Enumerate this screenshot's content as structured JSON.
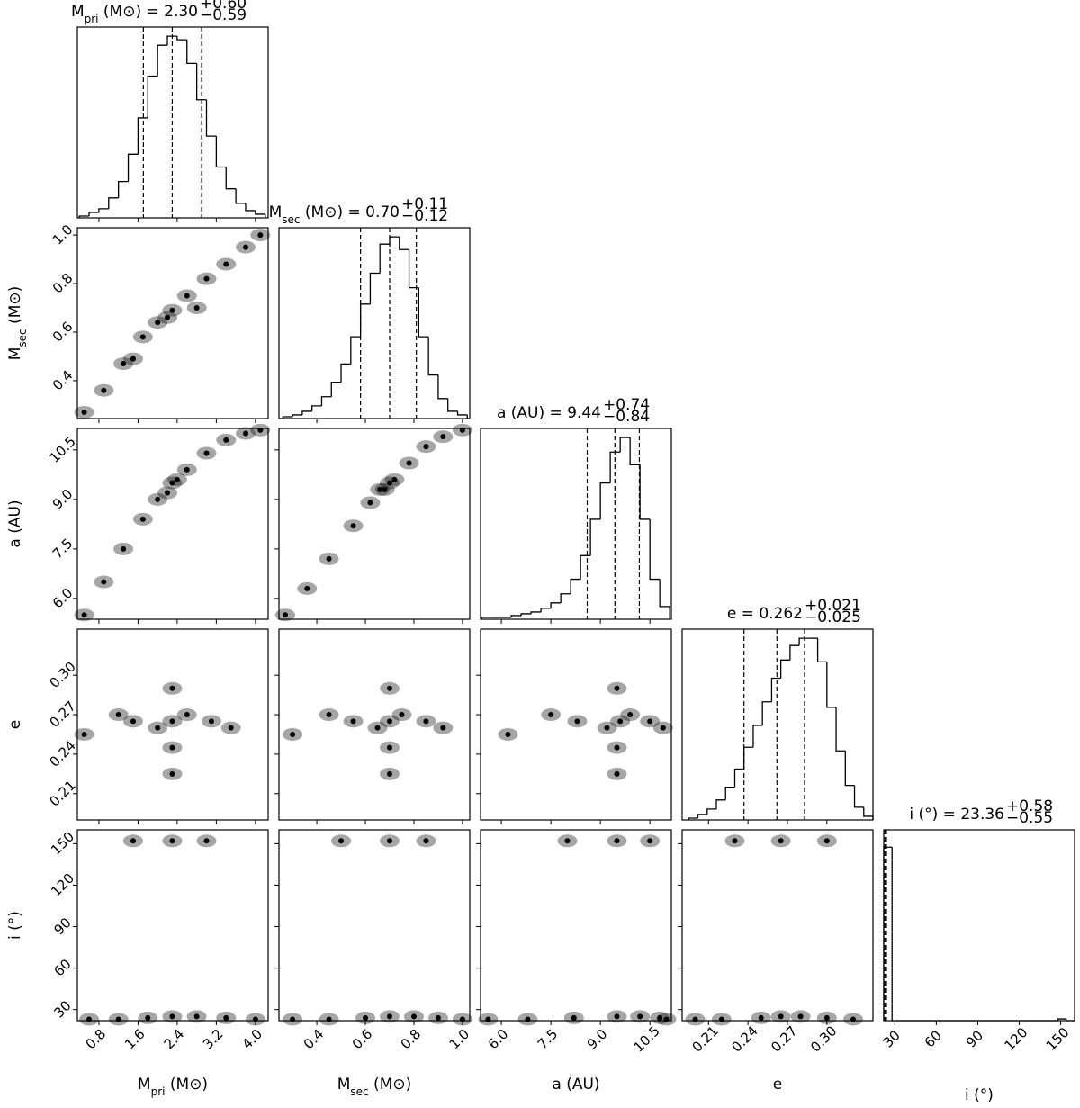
{
  "chart_data": {
    "type": "corner",
    "variables": [
      {
        "label": [
          {
            "text": "M"
          },
          {
            "text": "pri",
            "role": "sub"
          },
          {
            "text": " (M⊙)"
          }
        ],
        "title": {
          "parts": [
            {
              "text": "M"
            },
            {
              "text": "pri",
              "role": "sub"
            },
            {
              "text": " (M⊙) = 2.30"
            }
          ],
          "plus": "+0.60",
          "minus": "−0.59"
        },
        "lim": [
          0.36,
          4.26
        ],
        "ticks": [
          0.8,
          1.6,
          2.4,
          3.2,
          {
            "value": 4.0,
            "label": "4.0"
          }
        ],
        "quantiles": [
          1.71,
          2.3,
          2.9
        ],
        "hist": {
          "bins": [
            0.4,
            0.6,
            0.8,
            1.0,
            1.2,
            1.4,
            1.6,
            1.8,
            2.0,
            2.2,
            2.4,
            2.6,
            2.8,
            3.0,
            3.2,
            3.4,
            3.6,
            3.8,
            4.0,
            4.2
          ],
          "counts": [
            1,
            3,
            5,
            11,
            20,
            35,
            55,
            78,
            95,
            100,
            98,
            85,
            65,
            45,
            28,
            16,
            8,
            4,
            2
          ],
          "ylim": [
            0,
            105
          ]
        },
        "pairs": []
      },
      {
        "label": [
          {
            "text": "M"
          },
          {
            "text": "sec",
            "role": "sub"
          },
          {
            "text": " (M⊙)"
          }
        ],
        "title": {
          "parts": [
            {
              "text": "M"
            },
            {
              "text": "sec",
              "role": "sub"
            },
            {
              "text": " (M⊙) = 0.70"
            }
          ],
          "plus": "+0.11",
          "minus": "−0.12"
        },
        "lim": [
          0.244,
          1.03
        ],
        "ticks": [
          0.4,
          0.6,
          0.8,
          {
            "value": 1.0,
            "label": "1.0"
          }
        ],
        "quantiles": [
          0.58,
          0.7,
          0.81
        ],
        "hist": {
          "bins": [
            0.26,
            0.3,
            0.34,
            0.38,
            0.42,
            0.46,
            0.5,
            0.54,
            0.58,
            0.62,
            0.66,
            0.7,
            0.74,
            0.78,
            0.82,
            0.86,
            0.9,
            0.94,
            0.98,
            1.02
          ],
          "counts": [
            1,
            2,
            4,
            7,
            12,
            20,
            30,
            45,
            63,
            80,
            96,
            100,
            93,
            72,
            45,
            24,
            11,
            4,
            2
          ],
          "ylim": [
            0,
            105
          ]
        },
        "pairs": [
          {
            "x": [
              0.5,
              0.9,
              1.3,
              1.7,
              2.0,
              2.3,
              2.6,
              3.0,
              3.4,
              3.8,
              4.1,
              2.2,
              2.8,
              1.5
            ],
            "y": [
              0.27,
              0.36,
              0.47,
              0.58,
              0.64,
              0.69,
              0.75,
              0.82,
              0.88,
              0.95,
              1.0,
              0.66,
              0.7,
              0.49
            ]
          }
        ]
      },
      {
        "label": [
          {
            "text": "a (AU)"
          }
        ],
        "title": {
          "parts": [
            {
              "text": "a (AU) = 9.44"
            }
          ],
          "plus": "+0.74",
          "minus": "−0.84"
        },
        "lim": [
          5.37,
          11.15
        ],
        "ticks": [
          {
            "value": 6.0,
            "label": "6.0"
          },
          7.5,
          {
            "value": 9.0,
            "label": "9.0"
          },
          10.5
        ],
        "quantiles": [
          8.6,
          9.44,
          10.18
        ],
        "hist": {
          "bins": [
            5.4,
            5.7,
            6.0,
            6.3,
            6.6,
            6.9,
            7.2,
            7.5,
            7.8,
            8.1,
            8.4,
            8.7,
            9.0,
            9.3,
            9.6,
            9.9,
            10.2,
            10.5,
            10.8,
            11.1
          ],
          "counts": [
            1,
            1,
            1,
            2,
            3,
            4,
            6,
            9,
            14,
            22,
            35,
            55,
            75,
            92,
            100,
            85,
            55,
            22,
            7
          ],
          "ylim": [
            0,
            105
          ]
        },
        "pairs": [
          {
            "x": [
              0.5,
              0.9,
              1.3,
              1.7,
              2.0,
              2.3,
              2.6,
              3.0,
              3.4,
              3.8,
              4.1,
              2.2,
              2.4
            ],
            "y": [
              5.5,
              6.5,
              7.5,
              8.4,
              9.0,
              9.5,
              9.9,
              10.4,
              10.8,
              11.0,
              11.1,
              9.2,
              9.6
            ]
          },
          {
            "x": [
              0.27,
              0.36,
              0.45,
              0.55,
              0.62,
              0.68,
              0.72,
              0.78,
              0.85,
              0.92,
              1.0,
              0.66,
              0.7
            ],
            "y": [
              5.5,
              6.3,
              7.2,
              8.2,
              8.9,
              9.3,
              9.6,
              10.1,
              10.6,
              10.9,
              11.1,
              9.3,
              9.5
            ]
          }
        ]
      },
      {
        "label": [
          {
            "text": "e"
          }
        ],
        "title": {
          "parts": [
            {
              "text": "e = 0.262"
            }
          ],
          "plus": "+0.021",
          "minus": "−0.025"
        },
        "lim": [
          0.19,
          0.335
        ],
        "ticks": [
          0.21,
          0.24,
          0.27,
          {
            "value": 0.3,
            "label": "0.30"
          }
        ],
        "quantiles": [
          0.237,
          0.262,
          0.283
        ],
        "hist": {
          "bins": [
            0.195,
            0.202,
            0.209,
            0.216,
            0.223,
            0.23,
            0.237,
            0.244,
            0.251,
            0.258,
            0.265,
            0.272,
            0.279,
            0.286,
            0.293,
            0.3,
            0.307,
            0.314,
            0.321,
            0.328,
            0.335
          ],
          "counts": [
            1,
            3,
            6,
            11,
            18,
            28,
            40,
            52,
            65,
            78,
            88,
            96,
            100,
            100,
            87,
            62,
            38,
            19,
            7,
            2
          ],
          "ylim": [
            0,
            105
          ]
        },
        "pairs": [
          {
            "x": [
              2.3,
              2.0,
              2.6,
              1.5,
              3.1,
              2.3,
              2.3,
              1.2,
              3.5,
              2.3,
              0.5
            ],
            "y": [
              0.265,
              0.26,
              0.27,
              0.265,
              0.265,
              0.245,
              0.29,
              0.27,
              0.26,
              0.225,
              0.255
            ]
          },
          {
            "x": [
              0.7,
              0.65,
              0.75,
              0.55,
              0.85,
              0.7,
              0.7,
              0.45,
              0.92,
              0.7,
              0.3
            ],
            "y": [
              0.265,
              0.26,
              0.27,
              0.265,
              0.265,
              0.245,
              0.29,
              0.27,
              0.26,
              0.225,
              0.255
            ]
          },
          {
            "x": [
              9.6,
              9.2,
              9.9,
              8.3,
              10.5,
              9.5,
              9.5,
              7.5,
              10.9,
              9.5,
              6.2
            ],
            "y": [
              0.265,
              0.26,
              0.27,
              0.265,
              0.265,
              0.245,
              0.29,
              0.27,
              0.26,
              0.225,
              0.255
            ]
          }
        ]
      },
      {
        "label": [
          {
            "text": "i (°)"
          }
        ],
        "title": {
          "parts": [
            {
              "text": "i (°) = 23.36"
            }
          ],
          "plus": "+0.58",
          "minus": "−0.55"
        },
        "lim": [
          22,
          160
        ],
        "ticks": [
          30,
          60,
          90,
          120,
          150
        ],
        "quantiles": [
          22.81,
          23.36,
          23.94
        ],
        "hist": {
          "bins": [
            22,
            28,
            34,
            40,
            46,
            52,
            58,
            64,
            70,
            76,
            82,
            88,
            94,
            100,
            106,
            112,
            118,
            124,
            130,
            136,
            142,
            148,
            154,
            160
          ],
          "counts": [
            100,
            0,
            0,
            0,
            0,
            0,
            0,
            0,
            0,
            0,
            0,
            0,
            0,
            0,
            0,
            0,
            0,
            0,
            0,
            0,
            0,
            1,
            0
          ],
          "ylim": [
            0,
            110
          ]
        },
        "pairs": [
          {
            "x": [
              0.6,
              1.2,
              1.8,
              2.3,
              2.8,
              3.4,
              4.0,
              2.3,
              1.5,
              3.0
            ],
            "y": [
              23,
              23,
              24,
              25,
              25,
              24,
              23,
              152,
              152,
              152
            ]
          },
          {
            "x": [
              0.3,
              0.45,
              0.6,
              0.7,
              0.8,
              0.9,
              1.0,
              0.7,
              0.5,
              0.85
            ],
            "y": [
              23,
              23,
              24,
              25,
              25,
              24,
              23,
              152,
              152,
              152
            ]
          },
          {
            "x": [
              5.6,
              6.8,
              8.2,
              9.5,
              10.2,
              10.8,
              11.0,
              9.5,
              8.0,
              10.5
            ],
            "y": [
              23,
              23,
              24,
              25,
              25,
              24,
              23,
              152,
              152,
              152
            ]
          },
          {
            "x": [
              0.2,
              0.22,
              0.25,
              0.265,
              0.28,
              0.3,
              0.32,
              0.265,
              0.23,
              0.3
            ],
            "y": [
              23,
              23,
              24,
              25,
              25,
              24,
              23,
              152,
              152,
              152
            ]
          }
        ]
      }
    ]
  }
}
